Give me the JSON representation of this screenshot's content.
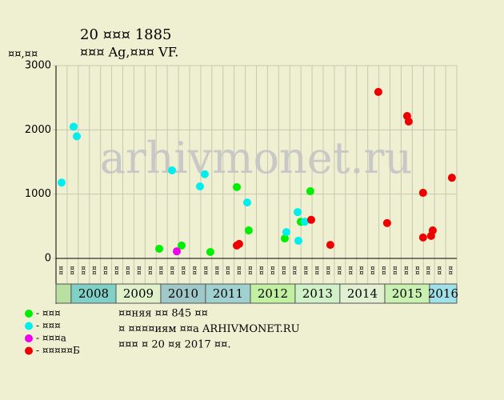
{
  "chart_data": {
    "type": "scatter",
    "title": "20 ¤¤¤ 1885",
    "subtitle": "¤¤¤ Ag,¤¤¤ VF.",
    "y_label": "¤¤,¤¤",
    "watermark": "arhivmonet.ru",
    "columns": [
      "¤¤",
      "¤¤",
      "¤¤",
      "¤¤",
      "¤¤",
      "¤¤",
      "¤¤",
      "¤¤",
      "¤¤",
      "¤¤",
      "¤¤",
      "¤¤",
      "¤¤",
      "¤¤",
      "¤¤",
      "¤¤",
      "¤¤",
      "¤¤",
      "¤¤",
      "¤¤",
      "¤¤",
      "¤¤",
      "¤¤",
      "¤¤",
      "¤¤",
      "¤¤",
      "¤¤",
      "¤¤",
      "¤¤",
      "¤¤",
      "¤¤",
      "¤¤",
      "¤¤",
      "¤¤",
      "¤¤",
      "¤¤"
    ],
    "years": [
      null,
      "2008",
      "2009",
      "2010",
      "2011",
      "2012",
      "2013",
      "2014",
      "2015",
      "2016"
    ],
    "year_colors": [
      "#b8e0a0",
      "#80d0c8",
      "#e0f0c8",
      "#a0c8c8",
      "#a0d0d0",
      "#c0f0a0",
      "#d0f0c8",
      "#e0f0d0",
      "#c8f0b0",
      "#a0e0e8"
    ],
    "xlim": [
      0,
      36
    ],
    "ylim": [
      0,
      3000
    ],
    "yticks": [
      0,
      1000,
      2000,
      3000
    ],
    "grid": true,
    "series": [
      {
        "name": "- ¤¤¤",
        "color": "#00ee00",
        "x": [
          9.27,
          11.28,
          13.86,
          16.24,
          17.31,
          20.55,
          21.98,
          22.84
        ],
        "values": [
          150,
          200,
          100,
          1110,
          435,
          310,
          570,
          1045
        ]
      },
      {
        "name": "- ¤¤¤",
        "color": "#00eeee",
        "x": [
          0.5,
          1.58,
          1.87,
          10.42,
          12.93,
          13.36,
          17.17,
          20.69,
          21.7,
          21.77,
          22.34
        ],
        "values": [
          1180,
          2050,
          1900,
          1370,
          1120,
          1310,
          870,
          410,
          720,
          275,
          570
        ]
      },
      {
        "name": "- ¤¤¤а",
        "color": "#ee00ee",
        "x": [
          10.85
        ],
        "values": [
          110
        ]
      },
      {
        "name": "- ¤¤¤¤¤Б",
        "color": "#ee0000",
        "x": [
          16.24,
          16.45,
          22.92,
          24.64,
          28.95,
          29.74,
          31.54,
          31.68,
          32.97,
          32.97,
          33.69,
          33.84,
          35.56
        ],
        "values": [
          200,
          225,
          600,
          210,
          2590,
          550,
          2215,
          2130,
          1020,
          325,
          350,
          435,
          1255
        ]
      }
    ],
    "notes": [
      "¤¤няя ¤¤ 845 ¤¤",
      "¤ ¤¤¤¤иям ¤¤а ARHIVMONET.RU",
      "¤¤¤ ¤ 20 ¤я 2017 ¤¤."
    ]
  }
}
